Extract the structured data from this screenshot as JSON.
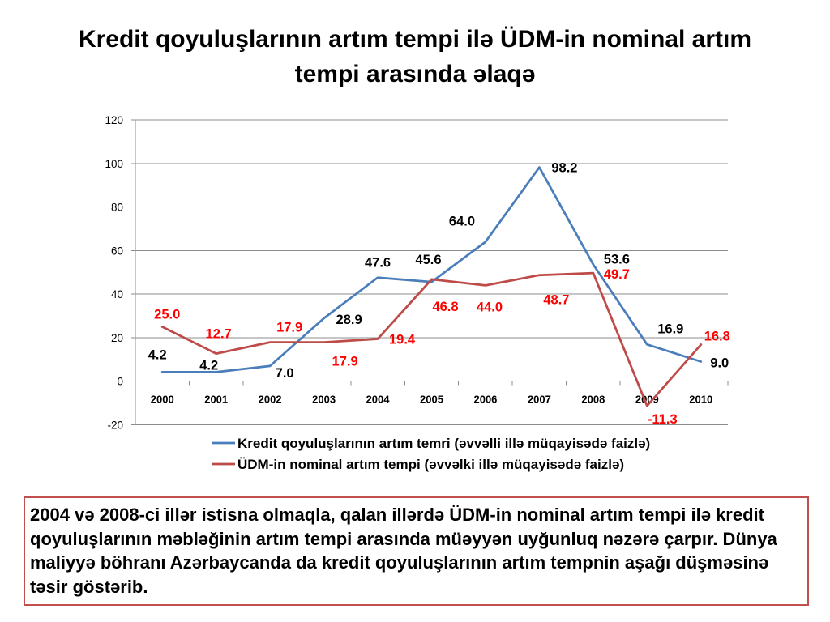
{
  "slide": {
    "title": "Kredit qoyuluşlarının artım tempi ilə ÜDM-in nominal artım tempi arasında əlaqə",
    "note": "2004 və 2008-ci illər istisna olmaqla, qalan illərdə ÜDM-in nominal artım tempi ilə kredit qoyuluşlarının məbləğinin artım tempi arasında müəyyən uyğunluq nəzərə çarpır. Dünya maliyyə böhranı Azərbaycanda da kredit qoyuluşlarının artım tempnin aşağı düşməsinə təsir göstərib.",
    "note_border_color": "#C0504D"
  },
  "chart_data": {
    "type": "line",
    "categories": [
      "2000",
      "2001",
      "2002",
      "2003",
      "2004",
      "2005",
      "2006",
      "2007",
      "2008",
      "2009",
      "2010"
    ],
    "ylim": [
      -20,
      120
    ],
    "yticks": [
      -20,
      0,
      20,
      40,
      60,
      80,
      100,
      120
    ],
    "grid": true,
    "legend": "bottom",
    "data_labels": true,
    "series": [
      {
        "name": "Kredit qoyuluşlarının artım temri (əvvəlli illə müqayisədə faizlə)",
        "color": "#4A7EBB",
        "label_color": "#000000",
        "values": [
          4.2,
          4.2,
          7.0,
          28.9,
          47.6,
          45.6,
          64.0,
          98.2,
          53.6,
          16.9,
          9.0
        ]
      },
      {
        "name": "ÜDM-in nominal artım tempi (əvvəlki illə müqayisədə faizlə)",
        "color": "#BE4B48",
        "label_color": "#FF0000",
        "values": [
          25.0,
          12.7,
          17.9,
          17.9,
          19.4,
          46.8,
          44.0,
          48.7,
          49.7,
          -11.3,
          16.8
        ]
      }
    ]
  }
}
